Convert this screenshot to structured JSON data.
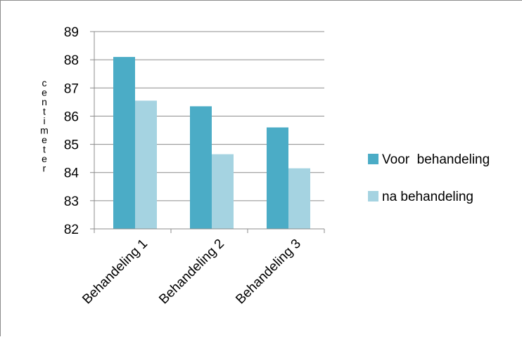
{
  "chart_data": {
    "type": "bar",
    "categories": [
      "Behandeling 1",
      "Behandeling 2",
      "Behandeling 3"
    ],
    "series": [
      {
        "name": "Voor  behandeling",
        "values": [
          88.1,
          86.35,
          85.6
        ],
        "color": "#4BACC6"
      },
      {
        "name": "na behandeling",
        "values": [
          86.55,
          84.65,
          84.15
        ],
        "color": "#A5D3E1"
      }
    ],
    "title": "",
    "xlabel": "",
    "ylabel": "centimeter",
    "ylim": [
      82,
      89
    ],
    "yticks": [
      82,
      83,
      84,
      85,
      86,
      87,
      88,
      89
    ],
    "grid": true,
    "legend_position": "right"
  }
}
